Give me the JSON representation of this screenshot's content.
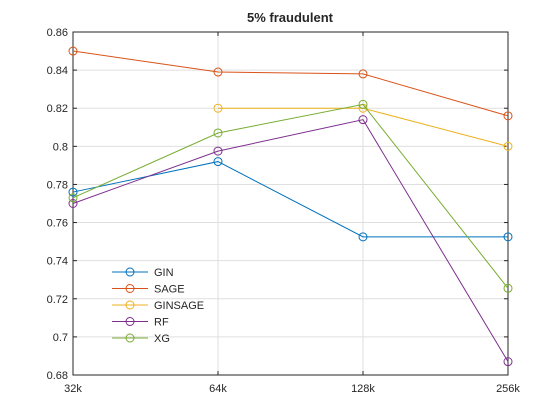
{
  "chart_data": {
    "type": "line",
    "title": "5% fraudulent",
    "xlabel": "",
    "ylabel": "",
    "categories": [
      "32k",
      "64k",
      "128k",
      "256k"
    ],
    "ylim": [
      0.68,
      0.86
    ],
    "yticks": [
      "0.68",
      "0.7",
      "0.72",
      "0.74",
      "0.76",
      "0.78",
      "0.8",
      "0.82",
      "0.84",
      "0.86"
    ],
    "grid": true,
    "legend_position": "bottom-left",
    "series": [
      {
        "name": "GIN",
        "color": "#0072BD",
        "values": [
          0.776,
          0.792,
          0.7525,
          0.7525
        ]
      },
      {
        "name": "SAGE",
        "color": "#D95319",
        "values": [
          0.85,
          0.839,
          0.838,
          0.816
        ]
      },
      {
        "name": "GINSAGE",
        "color": "#EDB120",
        "values": [
          null,
          0.82,
          0.82,
          0.8
        ]
      },
      {
        "name": "RF",
        "color": "#7E2F8E",
        "values": [
          0.77,
          0.7975,
          0.814,
          0.687
        ]
      },
      {
        "name": "XG",
        "color": "#77AC30",
        "values": [
          0.773,
          0.807,
          0.822,
          0.7255
        ]
      }
    ]
  }
}
